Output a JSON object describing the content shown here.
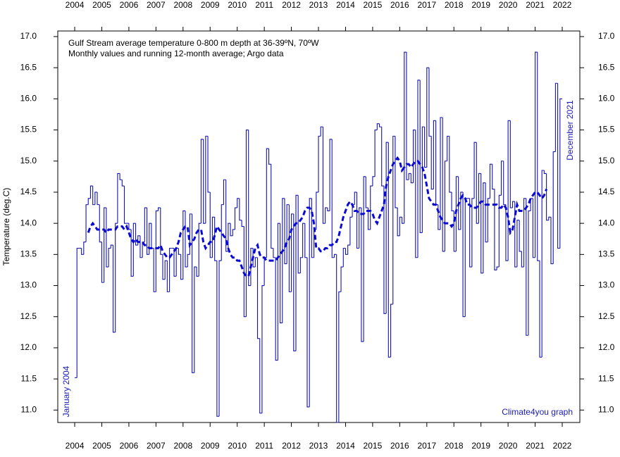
{
  "chart_data": {
    "type": "step",
    "title": "Gulf Stream average temperature 0-800 m depth at 36-39ºN, 70ºW",
    "subtitle": "Monthly values and running 12-month average; Argo data",
    "y_label": "Temperature (deg.C)",
    "annotations": {
      "start": "January 2004",
      "end": "December 2021",
      "credit": "Climate4you graph"
    },
    "xlim": [
      2003.375,
      2022.65
    ],
    "ylim": [
      10.8,
      17.09
    ],
    "xticks": [
      2004,
      2005,
      2006,
      2007,
      2008,
      2009,
      2010,
      2011,
      2012,
      2013,
      2014,
      2015,
      2016,
      2017,
      2018,
      2019,
      2020,
      2021,
      2022
    ],
    "yticks": [
      {
        "value": 11,
        "label": "11.0"
      },
      11.5,
      {
        "value": 12,
        "label": "12.0"
      },
      12.5,
      {
        "value": 13,
        "label": "13.0"
      },
      13.5,
      {
        "value": 14,
        "label": "14.0"
      },
      14.5,
      {
        "value": 15,
        "label": "15.0"
      },
      15.5,
      {
        "value": 16,
        "label": "16.0"
      },
      16.5,
      {
        "value": 17,
        "label": "17.0"
      }
    ],
    "x": [
      2004,
      2004.083,
      2004.167,
      2004.25,
      2004.333,
      2004.417,
      2004.5,
      2004.583,
      2004.667,
      2004.75,
      2004.833,
      2004.917,
      2005,
      2005.083,
      2005.167,
      2005.25,
      2005.333,
      2005.417,
      2005.5,
      2005.583,
      2005.667,
      2005.75,
      2005.833,
      2005.917,
      2006,
      2006.083,
      2006.167,
      2006.25,
      2006.333,
      2006.417,
      2006.5,
      2006.583,
      2006.667,
      2006.75,
      2006.833,
      2006.917,
      2007,
      2007.083,
      2007.167,
      2007.25,
      2007.333,
      2007.417,
      2007.5,
      2007.583,
      2007.667,
      2007.75,
      2007.833,
      2007.917,
      2008,
      2008.083,
      2008.167,
      2008.25,
      2008.333,
      2008.417,
      2008.5,
      2008.583,
      2008.667,
      2008.75,
      2008.833,
      2008.917,
      2009,
      2009.083,
      2009.167,
      2009.25,
      2009.333,
      2009.417,
      2009.5,
      2009.583,
      2009.667,
      2009.75,
      2009.833,
      2009.917,
      2010,
      2010.083,
      2010.167,
      2010.25,
      2010.333,
      2010.417,
      2010.5,
      2010.583,
      2010.667,
      2010.75,
      2010.833,
      2010.917,
      2011,
      2011.083,
      2011.167,
      2011.25,
      2011.333,
      2011.417,
      2011.5,
      2011.583,
      2011.667,
      2011.75,
      2011.833,
      2011.917,
      2012,
      2012.083,
      2012.167,
      2012.25,
      2012.333,
      2012.417,
      2012.5,
      2012.583,
      2012.667,
      2012.75,
      2012.833,
      2012.917,
      2013,
      2013.083,
      2013.167,
      2013.25,
      2013.333,
      2013.417,
      2013.5,
      2013.583,
      2013.667,
      2013.75,
      2013.833,
      2013.917,
      2014,
      2014.083,
      2014.167,
      2014.25,
      2014.333,
      2014.417,
      2014.5,
      2014.583,
      2014.667,
      2014.75,
      2014.833,
      2014.917,
      2015,
      2015.083,
      2015.167,
      2015.25,
      2015.333,
      2015.417,
      2015.5,
      2015.583,
      2015.667,
      2015.75,
      2015.833,
      2015.917,
      2016,
      2016.083,
      2016.167,
      2016.25,
      2016.333,
      2016.417,
      2016.5,
      2016.583,
      2016.667,
      2016.75,
      2016.833,
      2016.917,
      2017,
      2017.083,
      2017.167,
      2017.25,
      2017.333,
      2017.417,
      2017.5,
      2017.583,
      2017.667,
      2017.75,
      2017.833,
      2017.917,
      2018,
      2018.083,
      2018.167,
      2018.25,
      2018.333,
      2018.417,
      2018.5,
      2018.583,
      2018.667,
      2018.75,
      2018.833,
      2018.917,
      2019,
      2019.083,
      2019.167,
      2019.25,
      2019.333,
      2019.417,
      2019.5,
      2019.583,
      2019.667,
      2019.75,
      2019.833,
      2019.917,
      2020,
      2020.083,
      2020.167,
      2020.25,
      2020.333,
      2020.417,
      2020.5,
      2020.583,
      2020.667,
      2020.75,
      2020.833,
      2020.917,
      2021,
      2021.083,
      2021.167,
      2021.25,
      2021.333,
      2021.417,
      2021.5,
      2021.583,
      2021.667,
      2021.75,
      2021.833,
      2021.917
    ],
    "series": [
      {
        "color": "#1414b4",
        "style": "step",
        "values": [
          11.52,
          13.6,
          13.6,
          13.5,
          13.7,
          14.3,
          14.4,
          14.6,
          14.3,
          14.5,
          14.3,
          13.7,
          13.05,
          14.25,
          13.3,
          13.6,
          13.65,
          12.25,
          14.0,
          14.8,
          14.7,
          14.6,
          14.0,
          14.0,
          13.9,
          13.15,
          14.0,
          13.65,
          13.8,
          13.45,
          13.7,
          14.25,
          13.5,
          14.0,
          13.6,
          12.9,
          14.2,
          14.25,
          13.5,
          13.1,
          13.4,
          12.9,
          13.6,
          13.6,
          13.15,
          13.6,
          13.5,
          13.1,
          14.2,
          13.3,
          13.5,
          14.15,
          11.6,
          13.3,
          13.15,
          14.0,
          15.35,
          14.0,
          15.4,
          14.5,
          13.45,
          14.1,
          13.4,
          10.9,
          13.4,
          14.3,
          14.7,
          13.55,
          14.0,
          13.8,
          13.9,
          14.25,
          14.4,
          14.05,
          13.95,
          12.5,
          15.5,
          13.0,
          13.6,
          13.3,
          13.45,
          12.15,
          10.95,
          13.0,
          13.45,
          15.2,
          14.95,
          13.6,
          13.45,
          11.8,
          14.0,
          12.4,
          14.4,
          13.35,
          14.3,
          12.9,
          14.15,
          11.95,
          14.45,
          13.2,
          13.45,
          14.0,
          13.45,
          11.05,
          14.4,
          13.45,
          13.9,
          14.5,
          15.4,
          15.55,
          14.0,
          14.25,
          14.2,
          15.35,
          13.45,
          13.5,
          10.8,
          12.9,
          13.3,
          13.6,
          13.5,
          13.65,
          14.1,
          14.3,
          14.5,
          13.6,
          14.25,
          12.1,
          14.75,
          14.25,
          13.9,
          14.6,
          14.75,
          15.5,
          15.6,
          15.55,
          14.6,
          12.55,
          15.3,
          11.85,
          12.7,
          15.4,
          14.25,
          13.8,
          14.1,
          14.0,
          16.75,
          14.7,
          14.8,
          14.65,
          15.5,
          13.45,
          16.3,
          13.85,
          15.55,
          14.9,
          16.5,
          15.4,
          14.55,
          15.65,
          14.3,
          13.9,
          15.7,
          13.55,
          15.0,
          15.4,
          14.5,
          14.2,
          13.55,
          14.75,
          13.9,
          14.5,
          12.5,
          14.4,
          14.4,
          13.3,
          14.4,
          15.3,
          14.0,
          14.8,
          13.2,
          14.65,
          13.7,
          14.4,
          14.95,
          14.55,
          13.25,
          13.3,
          14.45,
          15.0,
          14.3,
          13.4,
          15.65,
          14.25,
          14.35,
          13.3,
          14.05,
          13.55,
          13.3,
          14.4,
          12.2,
          14.2,
          14.4,
          13.45,
          16.75,
          13.4,
          11.85,
          14.85,
          14.8,
          14.05,
          14.1,
          13.35,
          15.15,
          16.25,
          13.6,
          16.0
        ]
      },
      {
        "color": "#0a0ad2",
        "style": "dashed",
        "values": [
          null,
          null,
          null,
          null,
          null,
          null,
          13.85,
          13.95,
          14.0,
          13.95,
          13.9,
          13.9,
          13.9,
          13.9,
          13.85,
          13.9,
          13.9,
          13.9,
          13.9,
          13.95,
          13.95,
          13.95,
          13.9,
          13.95,
          13.85,
          13.75,
          13.7,
          13.75,
          13.7,
          13.7,
          13.7,
          13.65,
          13.65,
          13.6,
          13.6,
          13.6,
          13.6,
          13.6,
          13.65,
          13.55,
          13.5,
          13.45,
          13.45,
          13.5,
          13.55,
          13.6,
          13.7,
          13.85,
          13.9,
          13.95,
          13.95,
          13.65,
          13.7,
          13.75,
          13.85,
          13.9,
          13.9,
          13.7,
          13.6,
          13.65,
          13.7,
          13.7,
          13.8,
          13.95,
          13.9,
          13.85,
          13.8,
          13.75,
          13.6,
          13.5,
          13.45,
          13.45,
          13.4,
          13.4,
          13.3,
          13.2,
          13.15,
          13.15,
          13.3,
          13.45,
          13.6,
          13.65,
          13.5,
          13.45,
          13.45,
          13.4,
          13.4,
          13.4,
          13.4,
          13.4,
          13.45,
          13.5,
          13.55,
          13.6,
          13.7,
          13.75,
          13.9,
          13.95,
          14.0,
          14.0,
          14.05,
          14.1,
          14.2,
          14.25,
          14.25,
          14.2,
          14.0,
          13.6,
          13.6,
          13.55,
          13.55,
          13.6,
          13.6,
          13.65,
          13.65,
          13.7,
          13.7,
          13.8,
          13.95,
          14.1,
          14.2,
          14.3,
          14.35,
          14.3,
          14.2,
          14.2,
          14.15,
          14.15,
          14.15,
          14.2,
          14.2,
          14.2,
          14.15,
          14.05,
          14.0,
          14.1,
          14.2,
          14.3,
          14.6,
          14.75,
          14.85,
          14.95,
          15.0,
          15.05,
          15.0,
          14.85,
          14.9,
          14.95,
          14.95,
          14.9,
          14.95,
          15.0,
          15.0,
          14.95,
          14.9,
          14.8,
          14.6,
          14.4,
          14.35,
          14.3,
          14.3,
          14.2,
          14.1,
          14.05,
          14.0,
          14.0,
          14.0,
          13.95,
          14.0,
          14.2,
          14.3,
          14.4,
          14.45,
          14.4,
          14.3,
          14.3,
          14.25,
          14.25,
          14.25,
          14.3,
          14.35,
          14.35,
          14.3,
          14.3,
          14.3,
          14.3,
          14.3,
          14.3,
          14.25,
          14.25,
          14.3,
          14.25,
          14.1,
          13.85,
          13.9,
          14.1,
          14.3,
          14.2,
          14.2,
          14.2,
          14.25,
          14.3,
          14.4,
          14.45,
          14.5,
          14.5,
          14.45,
          14.4,
          14.45,
          14.55,
          null,
          null,
          null,
          null,
          null,
          null
        ]
      }
    ]
  }
}
